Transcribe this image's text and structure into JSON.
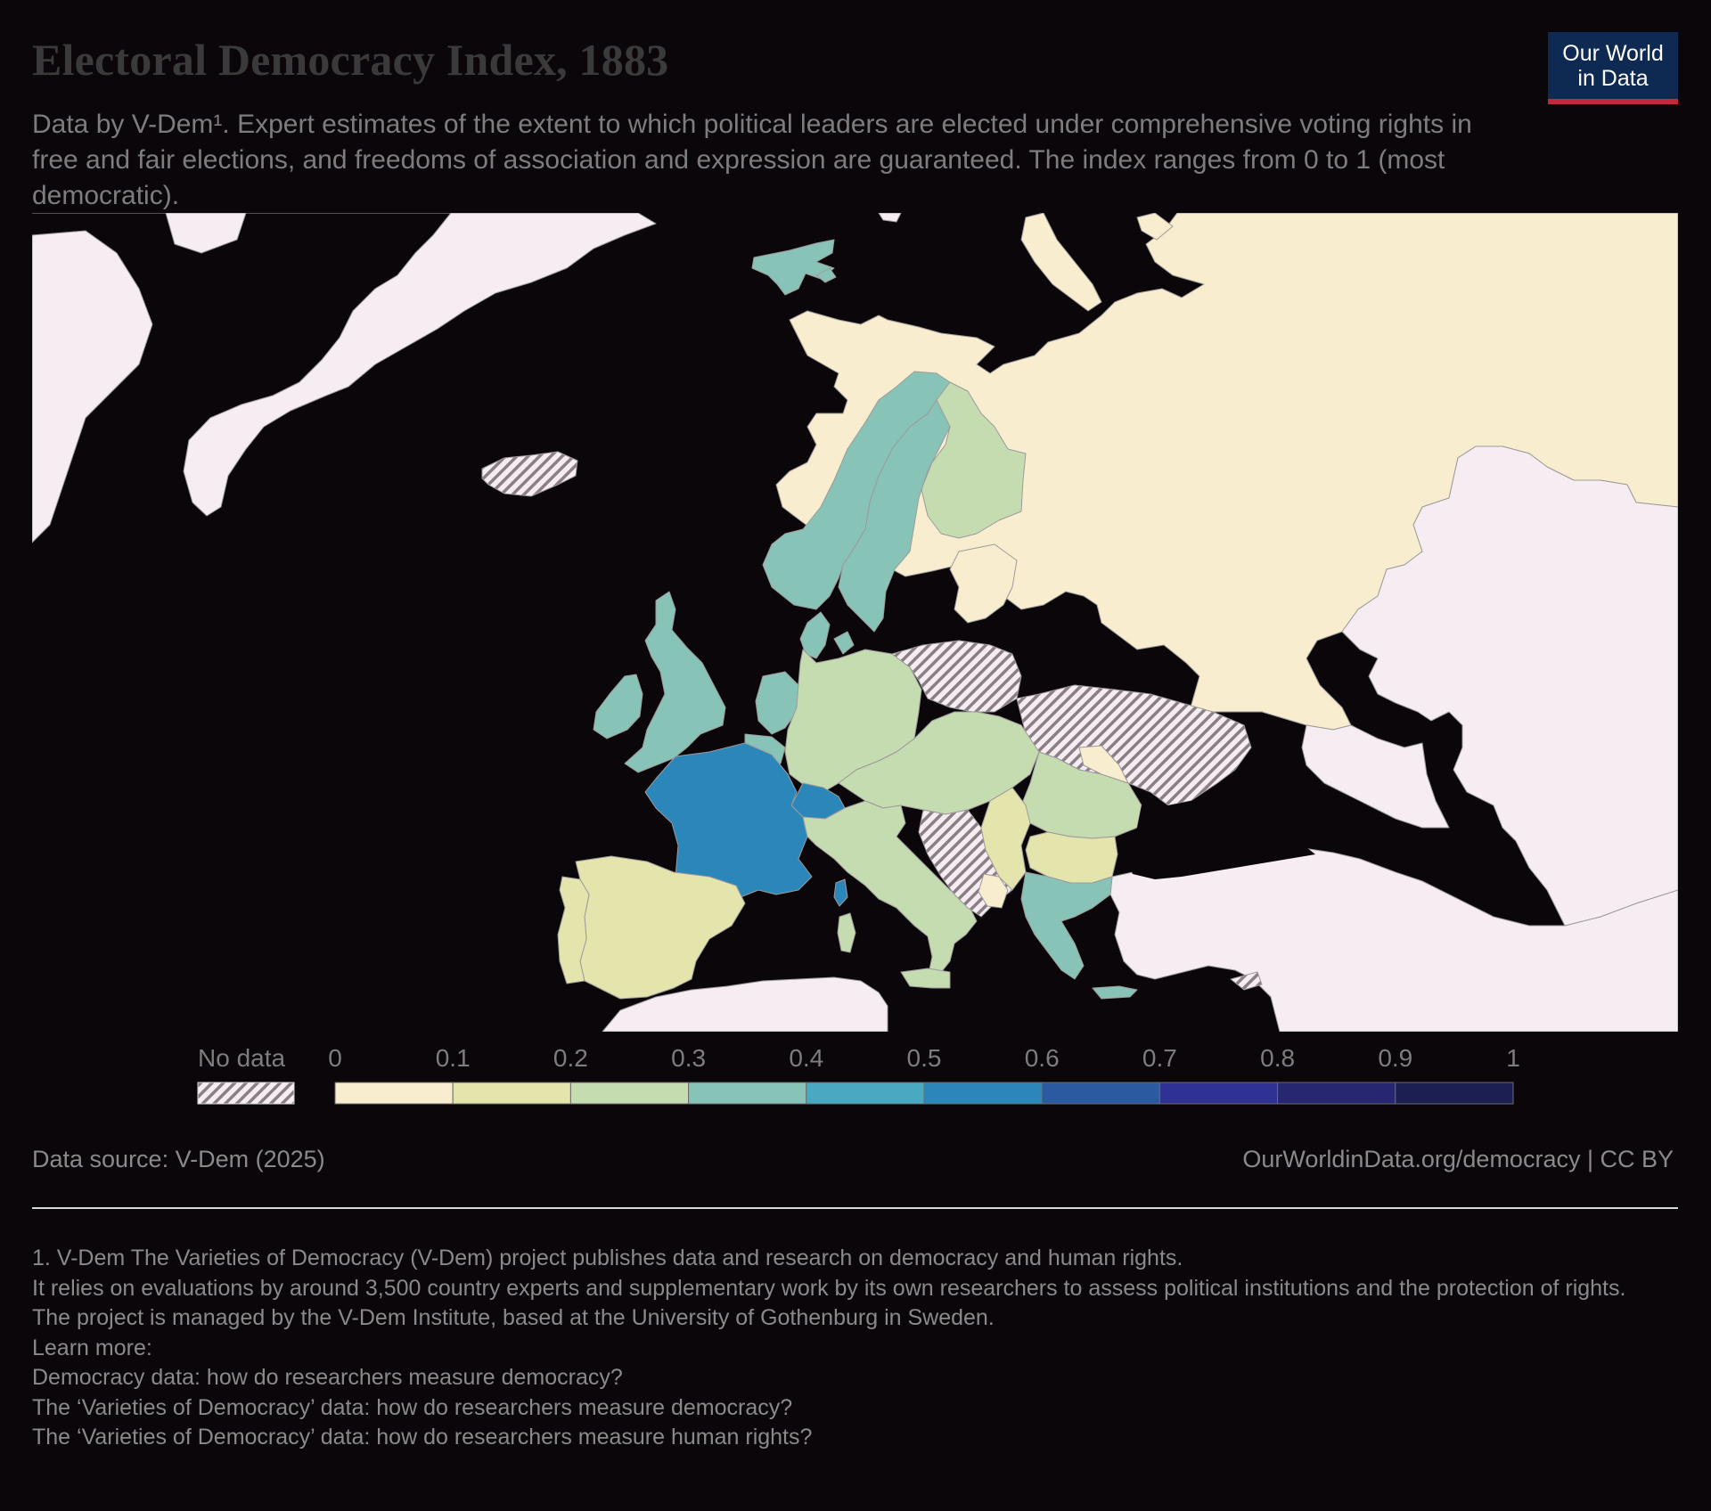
{
  "header": {
    "title": "Electoral Democracy Index, 1883",
    "subtitle": "Data by V-Dem¹. Expert estimates of the extent to which political leaders are elected under comprehensive voting rights in free and fair elections, and freedoms of association and expression are guaranteed. The index ranges from 0 to 1 (most democratic)."
  },
  "logo": {
    "line1": "Our World",
    "line2": "in Data"
  },
  "colors": {
    "background": "#0b0609",
    "no_data_land": "#f5edf1",
    "scale": [
      "#f8eecf",
      "#e4e5ad",
      "#c5dbb0",
      "#87c4b7",
      "#4aa9c2",
      "#2b86b9",
      "#2c5aa0",
      "#2f3293",
      "#262671",
      "#1c1f52"
    ]
  },
  "legend": {
    "no_data_label": "No data",
    "ticks": [
      "0",
      "0.1",
      "0.2",
      "0.3",
      "0.4",
      "0.5",
      "0.6",
      "0.7",
      "0.8",
      "0.9",
      "1"
    ]
  },
  "map_data": {
    "year": 1883,
    "regions": [
      {
        "name": "Russia",
        "bin": "0–0.1"
      },
      {
        "name": "Spain",
        "bin": "0.1–0.2"
      },
      {
        "name": "Portugal",
        "bin": "0.1–0.2"
      },
      {
        "name": "Serbia",
        "bin": "0.1–0.2"
      },
      {
        "name": "Bulgaria",
        "bin": "0.1–0.2"
      },
      {
        "name": "Montenegro",
        "bin": "0–0.1"
      },
      {
        "name": "Germany",
        "bin": "0.2–0.3"
      },
      {
        "name": "Austria-Hungary",
        "bin": "0.2–0.3"
      },
      {
        "name": "Italy",
        "bin": "0.2–0.3"
      },
      {
        "name": "Romania",
        "bin": "0.2–0.3"
      },
      {
        "name": "Finland",
        "bin": "0.2–0.3"
      },
      {
        "name": "Sweden",
        "bin": "0.3–0.4"
      },
      {
        "name": "Norway",
        "bin": "0.3–0.4"
      },
      {
        "name": "Denmark",
        "bin": "0.3–0.4"
      },
      {
        "name": "United Kingdom",
        "bin": "0.3–0.4"
      },
      {
        "name": "Ireland",
        "bin": "0.3–0.4"
      },
      {
        "name": "Netherlands",
        "bin": "0.3–0.4"
      },
      {
        "name": "Belgium",
        "bin": "0.3–0.4"
      },
      {
        "name": "Greece",
        "bin": "0.3–0.4"
      },
      {
        "name": "Svalbard",
        "bin": "0.3–0.4"
      },
      {
        "name": "France",
        "bin": "0.5–0.6"
      },
      {
        "name": "Switzerland",
        "bin": "0.5–0.6"
      },
      {
        "name": "Iceland",
        "bin": "No data"
      },
      {
        "name": "Poland",
        "bin": "No data"
      },
      {
        "name": "Ukraine",
        "bin": "No data"
      },
      {
        "name": "Bosnia and Herzegovina",
        "bin": "No data"
      },
      {
        "name": "Cyprus",
        "bin": "No data"
      }
    ]
  },
  "footer": {
    "source": "Data source: V-Dem (2025)",
    "url": "OurWorldinData.org/democracy | CC BY"
  },
  "footnotes": [
    "1. V-Dem The Varieties of Democracy (V-Dem) project publishes data and research on democracy and human rights.",
    "It relies on evaluations by around 3,500 country experts and supplementary work by its own researchers to assess political institutions and the protection of rights.",
    "The project is managed by the V-Dem Institute, based at the University of Gothenburg in Sweden.",
    "Learn more:",
    "Democracy data: how do researchers measure democracy?",
    "The ‘Varieties of Democracy’ data: how do researchers measure democracy?",
    "The ‘Varieties of Democracy’ data: how do researchers measure human rights?"
  ]
}
